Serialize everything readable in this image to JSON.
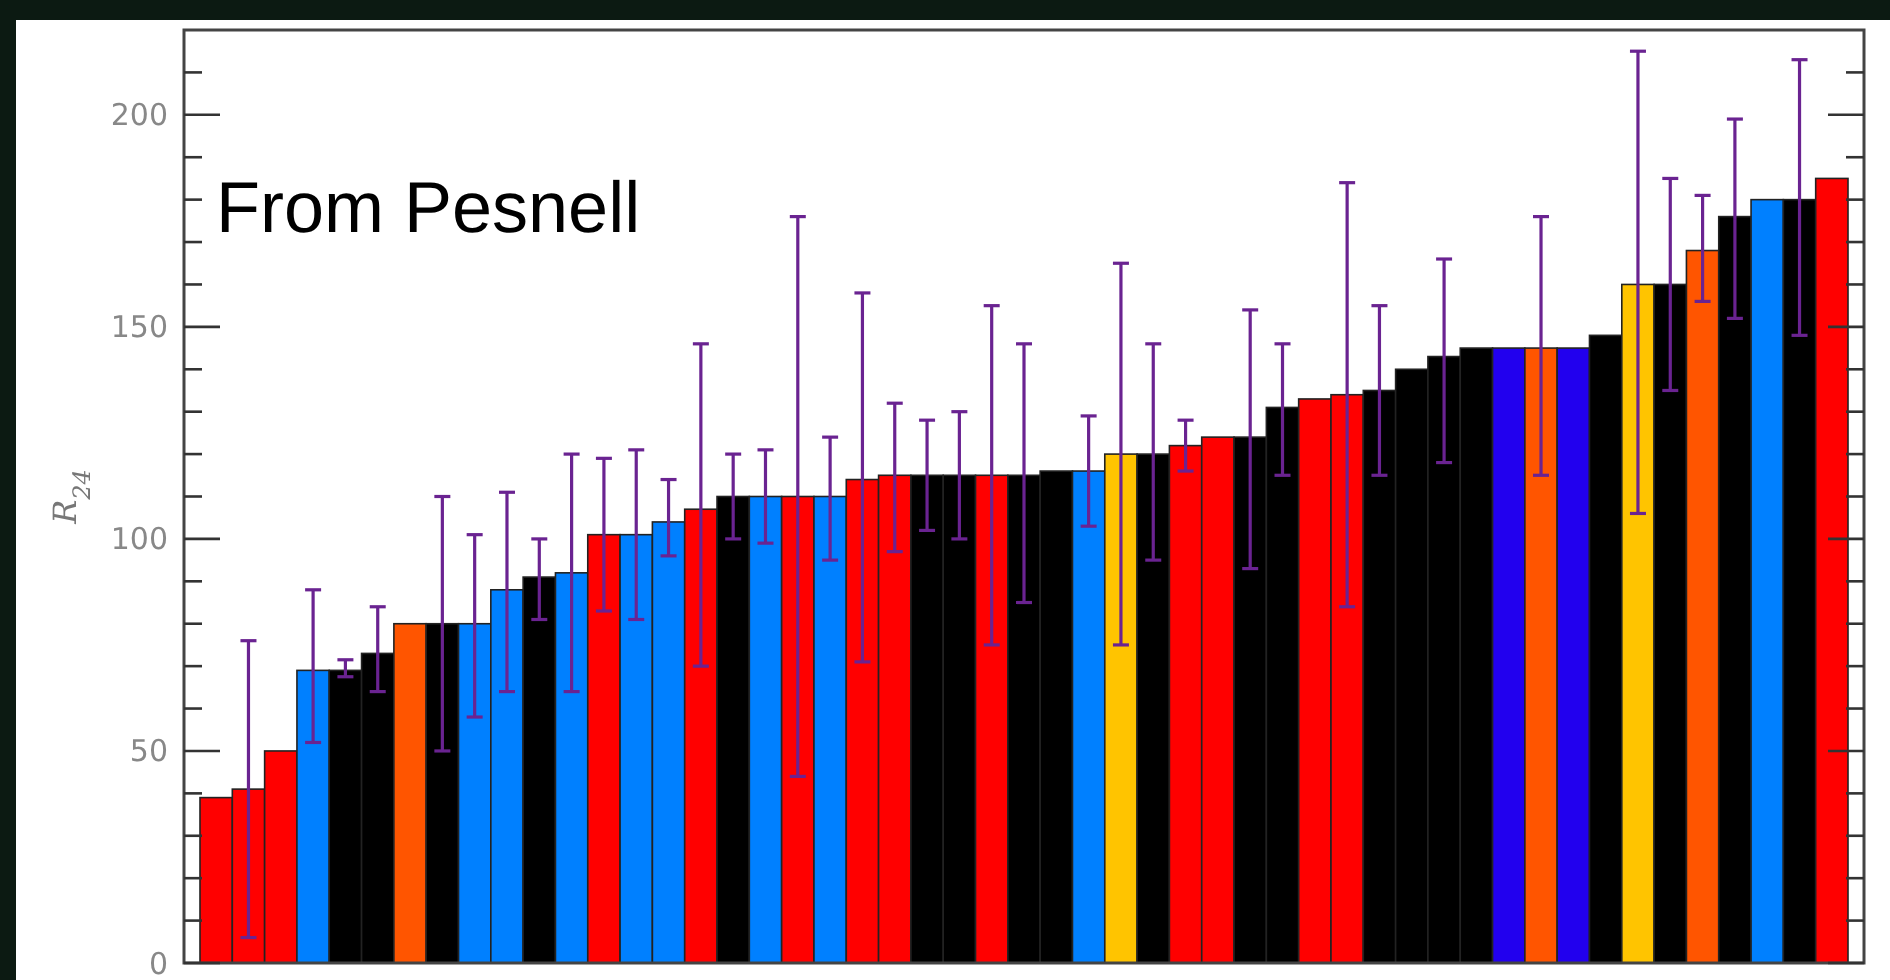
{
  "chart_data": {
    "type": "bar",
    "ylabel": "R$_{24}$",
    "annotations": [
      "From Pesnell"
    ],
    "categories": [
      null,
      null,
      null,
      null,
      null,
      null,
      null,
      null,
      null,
      null,
      null,
      null,
      null,
      null,
      null,
      null,
      null,
      null,
      null,
      null,
      null,
      null,
      null,
      null,
      null,
      null,
      null,
      null,
      null,
      null,
      null,
      null,
      null,
      null,
      null,
      null,
      null,
      null,
      null,
      null,
      null,
      null,
      null,
      null,
      null,
      null,
      null,
      null,
      null,
      null,
      null
    ],
    "values": [
      39,
      41,
      50,
      69,
      69,
      73,
      80,
      80,
      80,
      88,
      91,
      92,
      101,
      101,
      104,
      107,
      110,
      110,
      110,
      110,
      114,
      115,
      115,
      115,
      115,
      115,
      116,
      116,
      120,
      120,
      122,
      124,
      124,
      131,
      133,
      134,
      135,
      140,
      143,
      145,
      145,
      145,
      145,
      148,
      160,
      160,
      168,
      176,
      180,
      180,
      185
    ],
    "colors": [
      "#ff0000",
      "#ff0000",
      "#ff0000",
      "#0080ff",
      "#000000",
      "#000000",
      "#ff5500",
      "#000000",
      "#0080ff",
      "#0080ff",
      "#000000",
      "#0080ff",
      "#ff0000",
      "#0080ff",
      "#0080ff",
      "#ff0000",
      "#000000",
      "#0080ff",
      "#ff0000",
      "#0080ff",
      "#ff0000",
      "#ff0000",
      "#000000",
      "#000000",
      "#ff0000",
      "#000000",
      "#000000",
      "#0080ff",
      "#ffc400",
      "#000000",
      "#ff0000",
      "#ff0000",
      "#000000",
      "#000000",
      "#ff0000",
      "#ff0000",
      "#000000",
      "#000000",
      "#000000",
      "#000000",
      "#2200ee",
      "#ff5500",
      "#2200ee",
      "#000000",
      "#ffc400",
      "#000000",
      "#ff5500",
      "#000000",
      "#0080ff",
      "#000000",
      "#ff0000"
    ],
    "errors": [
      null,
      [
        6,
        76
      ],
      null,
      [
        52,
        88
      ],
      [
        67.5,
        71.5
      ],
      [
        64,
        84
      ],
      null,
      [
        50,
        110
      ],
      [
        58,
        101
      ],
      [
        64,
        111
      ],
      [
        81,
        100
      ],
      [
        64,
        120
      ],
      [
        83,
        119
      ],
      [
        81,
        121
      ],
      [
        96,
        114
      ],
      [
        70,
        146
      ],
      [
        100,
        120
      ],
      [
        99,
        121
      ],
      [
        44,
        176
      ],
      [
        95,
        124
      ],
      [
        71,
        158
      ],
      [
        97,
        132
      ],
      [
        102,
        128
      ],
      [
        100,
        130
      ],
      [
        75,
        155
      ],
      [
        85,
        146
      ],
      null,
      [
        103,
        129
      ],
      [
        75,
        165
      ],
      [
        95,
        146
      ],
      [
        116,
        128
      ],
      null,
      [
        93,
        154
      ],
      [
        115,
        146
      ],
      null,
      [
        84,
        184
      ],
      [
        115,
        155
      ],
      null,
      [
        118,
        166
      ],
      null,
      null,
      [
        115,
        176
      ],
      null,
      null,
      [
        106,
        215
      ],
      [
        135,
        185
      ],
      [
        156,
        181
      ],
      [
        152,
        199
      ],
      null,
      [
        148,
        213
      ],
      null
    ],
    "ylim": [
      0,
      220
    ],
    "yticks": [
      0,
      {
        "value": 10,
        "label": null
      },
      {
        "value": 20,
        "label": null
      },
      {
        "value": 30,
        "label": null
      },
      {
        "value": 40,
        "label": null
      },
      50,
      {
        "value": 60,
        "label": null
      },
      {
        "value": 70,
        "label": null
      },
      {
        "value": 80,
        "label": null
      },
      {
        "value": 90,
        "label": null
      },
      100,
      {
        "value": 110,
        "label": null
      },
      {
        "value": 120,
        "label": null
      },
      {
        "value": 130,
        "label": null
      },
      {
        "value": 140,
        "label": null
      },
      150,
      {
        "value": 160,
        "label": null
      },
      {
        "value": 170,
        "label": null
      },
      {
        "value": 180,
        "label": null
      },
      {
        "value": 190,
        "label": null
      },
      200,
      {
        "value": 210,
        "label": null
      }
    ]
  }
}
